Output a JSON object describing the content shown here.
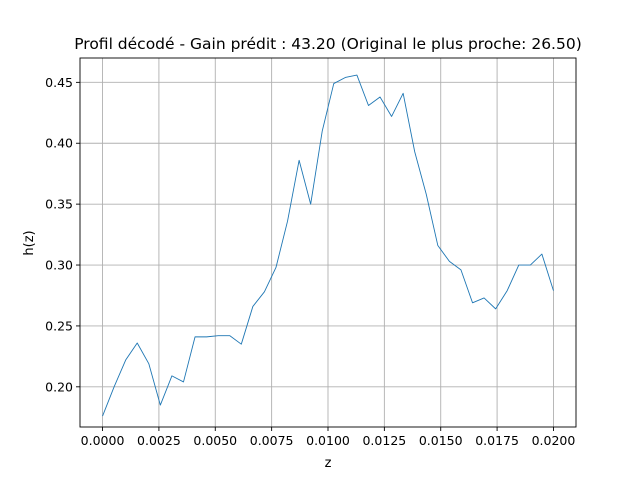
{
  "chart_data": {
    "type": "line",
    "title": "Profil décodé - Gain prédit : 43.20 (Original le plus proche: 26.50)",
    "xlabel": "z",
    "ylabel": "h(z)",
    "xlim": [
      -0.001,
      0.021
    ],
    "ylim": [
      0.167,
      0.47
    ],
    "grid": true,
    "x_ticks": [
      0.0,
      0.0025,
      0.005,
      0.0075,
      0.01,
      0.0125,
      0.015,
      0.0175,
      0.02
    ],
    "x_tick_labels": [
      "0.0000",
      "0.0025",
      "0.0050",
      "0.0075",
      "0.0100",
      "0.0125",
      "0.0150",
      "0.0175",
      "0.0200"
    ],
    "y_ticks": [
      0.2,
      0.25,
      0.3,
      0.35,
      0.4,
      0.45
    ],
    "y_tick_labels": [
      "0.20",
      "0.25",
      "0.30",
      "0.35",
      "0.40",
      "0.45"
    ],
    "series": [
      {
        "color": "#1f77b4",
        "x": [
          0.0,
          0.000513,
          0.001026,
          0.001538,
          0.002051,
          0.002564,
          0.003077,
          0.00359,
          0.004103,
          0.004615,
          0.005128,
          0.005641,
          0.006154,
          0.006667,
          0.007179,
          0.007692,
          0.008205,
          0.008718,
          0.009231,
          0.009744,
          0.010256,
          0.010769,
          0.011282,
          0.011795,
          0.012308,
          0.012821,
          0.013333,
          0.013846,
          0.014359,
          0.014872,
          0.015385,
          0.015897,
          0.01641,
          0.016923,
          0.017436,
          0.017949,
          0.018462,
          0.018974,
          0.019487,
          0.02
        ],
        "y": [
          0.176,
          0.2,
          0.222,
          0.236,
          0.219,
          0.185,
          0.209,
          0.204,
          0.241,
          0.241,
          0.242,
          0.242,
          0.235,
          0.266,
          0.278,
          0.298,
          0.336,
          0.386,
          0.35,
          0.41,
          0.449,
          0.454,
          0.456,
          0.431,
          0.438,
          0.422,
          0.441,
          0.393,
          0.358,
          0.316,
          0.303,
          0.296,
          0.269,
          0.273,
          0.264,
          0.279,
          0.3,
          0.3,
          0.309,
          0.279
        ]
      }
    ]
  }
}
